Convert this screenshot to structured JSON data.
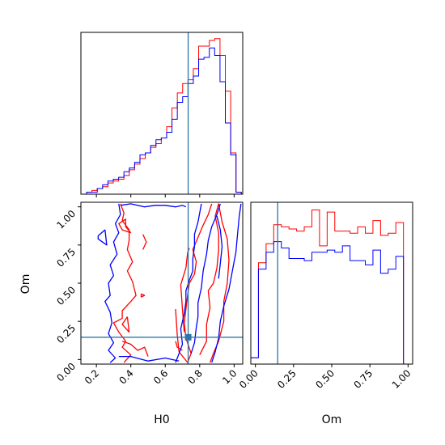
{
  "chart_data": {
    "type": "corner",
    "truth": {
      "H0": 0.733,
      "Om": 0.146
    },
    "colors": {
      "red": "#ff0000",
      "blue": "#0000ff",
      "truth": "#2f74a8"
    },
    "panels": {
      "H0_hist": {
        "type": "step-histogram",
        "xlim": [
          0.11,
          1.05
        ],
        "bins": [
          0.111,
          0.143,
          0.174,
          0.205,
          0.236,
          0.267,
          0.298,
          0.329,
          0.36,
          0.391,
          0.422,
          0.453,
          0.484,
          0.515,
          0.546,
          0.577,
          0.608,
          0.639,
          0.67,
          0.701,
          0.732,
          0.763,
          0.794,
          0.825,
          0.856,
          0.887,
          0.918,
          0.949,
          0.98,
          1.011,
          1.042
        ],
        "series": [
          {
            "color": "red",
            "values": [
              0,
              1,
              2,
              3,
              4,
              6,
              7,
              8,
              10,
              13,
              16,
              19,
              22,
              25,
              27,
              30,
              36,
              46,
              54,
              59,
              61,
              67,
              79,
              79,
              82,
              83,
              74,
              55,
              22,
              1
            ]
          },
          {
            "color": "blue",
            "values": [
              0,
              1,
              1,
              3,
              5,
              7,
              8,
              9,
              12,
              14,
              17,
              21,
              22,
              26,
              29,
              30,
              33,
              40,
              49,
              52,
              59,
              63,
              72,
              73,
              78,
              74,
              60,
              38,
              21,
              1
            ]
          }
        ]
      },
      "Om_hist": {
        "type": "step-histogram",
        "xlim": [
          -0.03,
          1.03
        ],
        "bins": [
          -0.03,
          0.02,
          0.07,
          0.12,
          0.17,
          0.22,
          0.27,
          0.32,
          0.37,
          0.42,
          0.47,
          0.52,
          0.57,
          0.62,
          0.67,
          0.72,
          0.77,
          0.82,
          0.87,
          0.92,
          0.97,
          1.02
        ],
        "series": [
          {
            "color": "red",
            "values": [
              3,
              48,
              57,
              66,
              65,
              64,
              63,
              65,
              73,
              56,
              72,
              63,
              63,
              62,
              65,
              62,
              68,
              61,
              62,
              67,
              0
            ]
          },
          {
            "color": "blue",
            "values": [
              3,
              45,
              53,
              58,
              55,
              50,
              50,
              49,
              53,
              53,
              54,
              53,
              56,
              49,
              49,
              47,
              54,
              43,
              45,
              51,
              0
            ]
          }
        ]
      },
      "joint": {
        "type": "contour",
        "xlim": [
          0.11,
          1.05
        ],
        "ylim": [
          -0.03,
          1.03
        ],
        "contours": [
          {
            "color": "red",
            "points": [
              [
                0.34,
                1.02
              ],
              [
                0.36,
                0.96
              ],
              [
                0.35,
                0.91
              ],
              [
                0.39,
                0.85
              ],
              [
                0.39,
                0.78
              ],
              [
                0.38,
                0.72
              ],
              [
                0.41,
                0.64
              ],
              [
                0.38,
                0.58
              ],
              [
                0.41,
                0.51
              ],
              [
                0.43,
                0.42
              ],
              [
                0.4,
                0.38
              ],
              [
                0.35,
                0.32
              ],
              [
                0.35,
                0.27
              ],
              [
                0.3,
                0.24
              ],
              [
                0.33,
                0.18
              ],
              [
                0.35,
                0.15
              ],
              [
                0.37,
                0.12
              ],
              [
                0.35,
                0.08
              ],
              [
                0.4,
                0.03
              ],
              [
                0.36,
                -0.02
              ]
            ]
          },
          {
            "color": "red",
            "points": [
              [
                0.66,
                0.33
              ],
              [
                0.67,
                0.16
              ],
              [
                0.68,
                0.05
              ],
              [
                0.73,
                -0.02
              ],
              [
                0.75,
                0.04
              ],
              [
                0.72,
                0.14
              ],
              [
                0.71,
                0.24
              ],
              [
                0.73,
                0.42
              ],
              [
                0.74,
                0.5
              ],
              [
                0.77,
                0.56
              ],
              [
                0.78,
                0.64
              ],
              [
                0.76,
                0.72
              ],
              [
                0.79,
                0.8
              ],
              [
                0.82,
                0.88
              ],
              [
                0.85,
                0.95
              ],
              [
                0.87,
                1.02
              ]
            ]
          },
          {
            "color": "red",
            "points": [
              [
                0.71,
                0.18
              ],
              [
                0.7,
                0.33
              ],
              [
                0.69,
                0.49
              ],
              [
                0.72,
                0.6
              ],
              [
                0.73,
                0.7
              ],
              [
                0.74,
                0.73
              ]
            ]
          },
          {
            "color": "red",
            "points": [
              [
                0.8,
                0.03
              ],
              [
                0.84,
                0.12
              ],
              [
                0.84,
                0.23
              ],
              [
                0.86,
                0.34
              ],
              [
                0.85,
                0.45
              ],
              [
                0.88,
                0.5
              ],
              [
                0.9,
                0.6
              ],
              [
                0.91,
                0.72
              ],
              [
                0.91,
                0.83
              ],
              [
                0.89,
                0.94
              ],
              [
                0.91,
                1.02
              ],
              [
                0.93,
                0.9
              ],
              [
                0.96,
                0.79
              ],
              [
                0.97,
                0.65
              ],
              [
                0.96,
                0.5
              ],
              [
                0.94,
                0.38
              ],
              [
                0.94,
                0.25
              ],
              [
                0.91,
                0.12
              ],
              [
                0.88,
                0.04
              ],
              [
                0.86,
                -0.02
              ]
            ]
          },
          {
            "color": "red",
            "points": [
              [
                0.4,
                0.83
              ],
              [
                0.37,
                0.87
              ],
              [
                0.37,
                0.92
              ],
              [
                0.33,
                0.89
              ],
              [
                0.35,
                0.85
              ],
              [
                0.4,
                0.83
              ]
            ]
          },
          {
            "color": "red",
            "points": [
              [
                0.38,
                0.28
              ],
              [
                0.35,
                0.23
              ],
              [
                0.39,
                0.18
              ],
              [
                0.38,
                0.28
              ]
            ]
          },
          {
            "color": "red",
            "points": [
              [
                0.47,
                0.82
              ],
              [
                0.49,
                0.77
              ],
              [
                0.47,
                0.72
              ]
            ]
          },
          {
            "color": "red",
            "points": [
              [
                0.35,
                0.12
              ],
              [
                0.4,
                0.1
              ],
              [
                0.44,
                0.06
              ],
              [
                0.48,
                0.08
              ],
              [
                0.5,
                0.02
              ]
            ]
          },
          {
            "color": "red",
            "points": [
              [
                0.46,
                0.43
              ],
              [
                0.48,
                0.42
              ],
              [
                0.46,
                0.41
              ],
              [
                0.46,
                0.43
              ]
            ]
          },
          {
            "color": "red",
            "points": [
              [
                0.66,
                0.12
              ],
              [
                0.67,
                0.08
              ],
              [
                0.7,
                0.06
              ]
            ]
          },
          {
            "color": "blue",
            "points": [
              [
                0.33,
                1.02
              ],
              [
                0.34,
                0.95
              ],
              [
                0.31,
                0.89
              ],
              [
                0.33,
                0.83
              ],
              [
                0.3,
                0.77
              ],
              [
                0.32,
                0.69
              ],
              [
                0.28,
                0.62
              ],
              [
                0.3,
                0.55
              ],
              [
                0.27,
                0.5
              ],
              [
                0.28,
                0.42
              ],
              [
                0.25,
                0.38
              ],
              [
                0.28,
                0.31
              ],
              [
                0.29,
                0.24
              ],
              [
                0.27,
                0.17
              ],
              [
                0.3,
                0.11
              ],
              [
                0.27,
                0.06
              ],
              [
                0.31,
                0.01
              ],
              [
                0.28,
                -0.02
              ]
            ]
          },
          {
            "color": "blue",
            "points": [
              [
                0.25,
                0.85
              ],
              [
                0.21,
                0.81
              ],
              [
                0.21,
                0.79
              ],
              [
                0.26,
                0.75
              ],
              [
                0.25,
                0.85
              ]
            ]
          },
          {
            "color": "blue",
            "points": [
              [
                0.34,
                1.01
              ],
              [
                0.4,
                1.02
              ],
              [
                0.48,
                1.0
              ],
              [
                0.54,
                1.01
              ],
              [
                0.6,
                1.01
              ],
              [
                0.66,
                1.0
              ],
              [
                0.7,
                1.01
              ],
              [
                0.72,
                1.0
              ]
            ]
          },
          {
            "color": "blue",
            "points": [
              [
                0.33,
                0.02
              ],
              [
                0.4,
                0.02
              ],
              [
                0.5,
                -0.01
              ],
              [
                0.6,
                0.01
              ],
              [
                0.68,
                -0.01
              ]
            ]
          },
          {
            "color": "blue",
            "points": [
              [
                0.66,
                -0.02
              ],
              [
                0.68,
                0.04
              ],
              [
                0.7,
                0.1
              ],
              [
                0.69,
                0.2
              ],
              [
                0.71,
                0.3
              ],
              [
                0.72,
                0.38
              ],
              [
                0.72,
                0.45
              ],
              [
                0.74,
                0.52
              ],
              [
                0.76,
                0.58
              ],
              [
                0.76,
                0.66
              ],
              [
                0.77,
                0.74
              ],
              [
                0.77,
                0.82
              ],
              [
                0.79,
                0.9
              ],
              [
                0.8,
                0.96
              ],
              [
                0.81,
                1.02
              ]
            ]
          },
          {
            "color": "blue",
            "points": [
              [
                0.87,
                -0.02
              ],
              [
                0.89,
                0.05
              ],
              [
                0.91,
                0.14
              ],
              [
                0.92,
                0.25
              ],
              [
                0.94,
                0.35
              ],
              [
                0.97,
                0.46
              ],
              [
                0.99,
                0.58
              ],
              [
                1.01,
                0.7
              ],
              [
                1.02,
                0.82
              ],
              [
                1.03,
                0.94
              ],
              [
                1.04,
                1.02
              ]
            ]
          },
          {
            "color": "blue",
            "points": [
              [
                0.75,
                0.04
              ],
              [
                0.77,
                0.11
              ],
              [
                0.78,
                0.21
              ],
              [
                0.79,
                0.28
              ],
              [
                0.79,
                0.37
              ],
              [
                0.81,
                0.47
              ],
              [
                0.82,
                0.58
              ],
              [
                0.84,
                0.69
              ],
              [
                0.85,
                0.78
              ],
              [
                0.87,
                0.87
              ],
              [
                0.9,
                0.95
              ],
              [
                0.92,
                1.02
              ]
            ]
          },
          {
            "color": "blue",
            "points": [
              [
                0.9,
                0.94
              ],
              [
                0.92,
                0.85
              ],
              [
                0.93,
                0.74
              ],
              [
                0.92,
                0.63
              ],
              [
                0.91,
                0.53
              ]
            ]
          }
        ]
      }
    },
    "axes": {
      "x_H0": {
        "label": "H0",
        "ticks": [
          0.2,
          0.4,
          0.6,
          0.8,
          1.0
        ],
        "tick_labels": [
          "0.2",
          "0.4",
          "0.6",
          "0.8",
          "1.0"
        ]
      },
      "y_Om": {
        "label": "Om",
        "ticks": [
          0.0,
          0.25,
          0.5,
          0.75,
          1.0
        ],
        "tick_labels": [
          "0.00",
          "0.25",
          "0.50",
          "0.75",
          "1.00"
        ]
      },
      "x_Om": {
        "label": "Om",
        "ticks": [
          0.0,
          0.25,
          0.5,
          0.75,
          1.0
        ],
        "tick_labels": [
          "0.00",
          "0.25",
          "0.50",
          "0.75",
          "1.00"
        ]
      }
    }
  }
}
